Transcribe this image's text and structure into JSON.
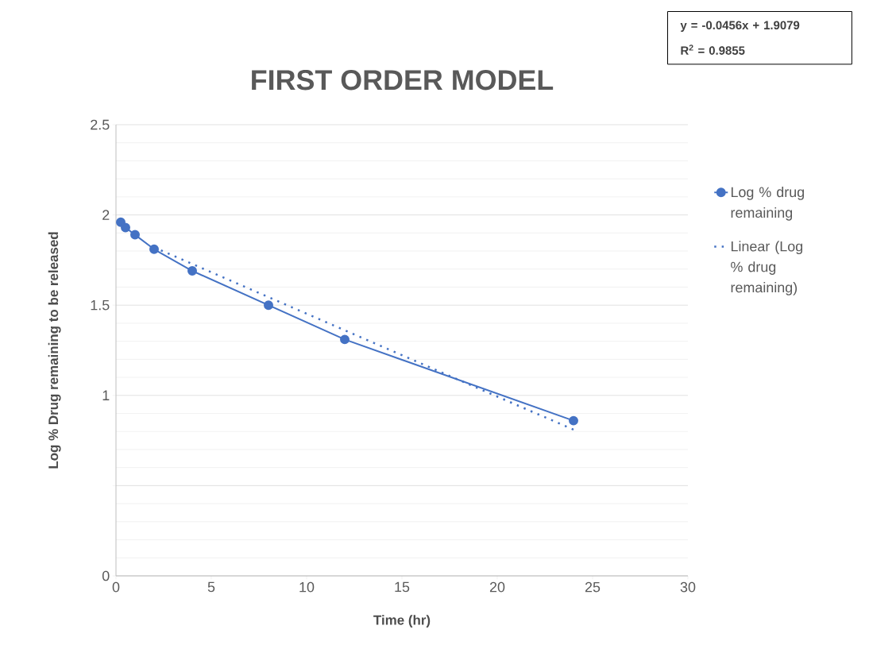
{
  "chart_data": {
    "type": "line",
    "title": "FIRST ORDER MODEL",
    "xlabel": "Time (hr)",
    "ylabel": "Log % Drug remaining to be released",
    "annotations": [
      "y = -0.0456x + 1.9079",
      "R$^{2}$ = 0.9855"
    ],
    "series": [
      {
        "name": "Log % drug remaining",
        "color": "#4472c4",
        "x": [
          0.25,
          0.5,
          1,
          2,
          4,
          8,
          12,
          24
        ],
        "values": [
          1.96,
          1.93,
          1.89,
          1.81,
          1.69,
          1.5,
          1.31,
          0.86
        ],
        "marker": "circle",
        "line_style": "solid"
      },
      {
        "name": "Linear (Log % drug remaining)",
        "color": "#4472c4",
        "x": [
          2,
          24
        ],
        "values": [
          1.82,
          0.81
        ],
        "marker": "none",
        "line_style": "dotted"
      }
    ],
    "xlim": [
      0,
      30
    ],
    "xticks": [
      0,
      5,
      10,
      15,
      20,
      25,
      30
    ],
    "ylim": [
      0,
      2.5
    ],
    "yticks": [
      0,
      {
        "value": 0.5,
        "label": null
      },
      1,
      1.5,
      2,
      2.5
    ],
    "grid": "y",
    "legend": "right"
  }
}
